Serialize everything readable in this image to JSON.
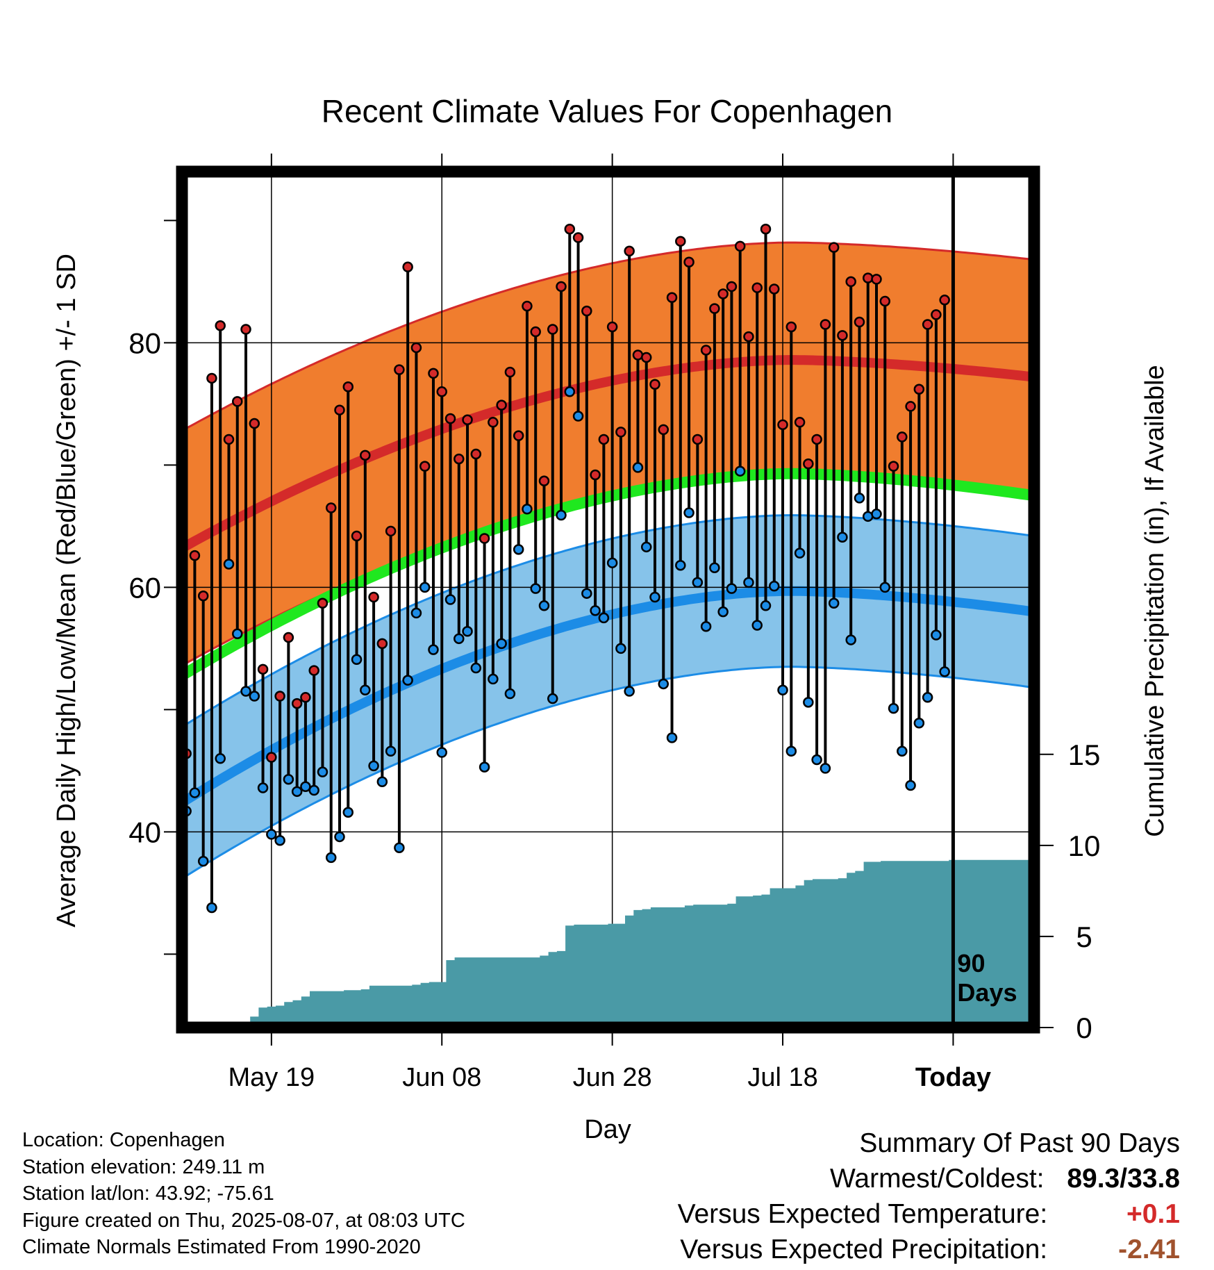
{
  "chart_data": {
    "type": "line",
    "title": "Recent Climate Values For Copenhagen",
    "xlabel": "Day",
    "ylabel_left": "Average Daily High/Low/Mean (Red/Blue/Green) +/- 1 SD",
    "ylabel_right": "Cumulative Precipitation (in), If Available",
    "x_tick_labels": [
      "May 19",
      "Jun 08",
      "Jun 28",
      "Jul 18",
      "Today"
    ],
    "x_tick_days": [
      10,
      30,
      50,
      70,
      90
    ],
    "xlim": [
      -0.5,
      99.5
    ],
    "ylim_left": [
      24,
      94
    ],
    "ylim_right": [
      0,
      47
    ],
    "y_left_ticks": [
      40,
      60,
      80
    ],
    "y_right_ticks": [
      0,
      5,
      10,
      15
    ],
    "period_marker": "90\nDays",
    "normals": {
      "high_mean_start": 63.4,
      "high_mean_peak": 78.6,
      "high_mean_end": 77.2,
      "high_sd": 9.6,
      "low_mean_start": 42.6,
      "low_mean_peak": 59.7,
      "low_mean_end": 58.0,
      "low_sd": 6.2,
      "mean_start": 53.0,
      "mean_peak": 69.3,
      "mean_end": 67.5,
      "peak_day": 71
    },
    "series": [
      {
        "name": "Daily High",
        "color": "#d42a2a",
        "values": [
          46.4,
          62.6,
          59.3,
          77.1,
          81.4,
          72.1,
          75.2,
          81.1,
          73.4,
          53.3,
          46.1,
          51.1,
          55.9,
          50.5,
          51.0,
          53.2,
          58.7,
          66.5,
          74.5,
          76.4,
          64.2,
          70.8,
          59.2,
          55.4,
          64.6,
          77.8,
          86.2,
          79.6,
          69.9,
          77.5,
          76.0,
          73.8,
          70.5,
          73.7,
          70.9,
          64.0,
          73.5,
          74.9,
          77.6,
          72.4,
          83.0,
          80.9,
          68.7,
          81.1,
          84.6,
          89.3,
          88.6,
          82.6,
          69.2,
          72.1,
          81.3,
          72.7,
          87.5,
          79.0,
          78.8,
          76.6,
          72.9,
          83.7,
          88.3,
          86.6,
          72.1,
          79.4,
          82.8,
          84.0,
          84.6,
          87.9,
          80.5,
          84.5,
          89.3,
          84.4,
          73.3,
          81.3,
          73.5,
          70.1,
          72.1,
          81.5,
          87.8,
          80.6,
          85.0,
          81.7,
          85.3,
          85.2,
          83.4,
          69.9,
          72.3,
          74.8,
          76.2,
          81.5,
          82.3,
          83.5
        ]
      },
      {
        "name": "Daily Low",
        "color": "#1c8ce6",
        "values": [
          41.7,
          43.2,
          37.6,
          33.8,
          46.0,
          61.9,
          56.2,
          51.5,
          51.1,
          43.6,
          39.8,
          39.3,
          44.3,
          43.3,
          43.7,
          43.4,
          44.9,
          37.9,
          39.6,
          41.6,
          54.1,
          51.6,
          45.4,
          44.1,
          46.6,
          38.7,
          52.4,
          57.9,
          60.0,
          54.9,
          46.5,
          59.0,
          55.8,
          56.4,
          53.4,
          45.3,
          52.5,
          55.4,
          51.3,
          63.1,
          66.4,
          59.9,
          58.5,
          50.9,
          65.9,
          76.0,
          74.0,
          59.5,
          58.1,
          57.5,
          62.0,
          55.0,
          51.5,
          69.8,
          63.3,
          59.2,
          52.1,
          47.7,
          61.8,
          66.1,
          60.4,
          56.8,
          61.6,
          58.0,
          59.9,
          69.5,
          60.4,
          56.9,
          58.5,
          60.1,
          51.6,
          46.6,
          62.8,
          50.6,
          45.9,
          45.2,
          58.7,
          64.1,
          55.7,
          67.3,
          65.8,
          66.0,
          60.0,
          50.1,
          46.6,
          43.8,
          48.9,
          51.0,
          56.1,
          53.1
        ]
      }
    ],
    "precipitation": {
      "name": "Cumulative Precipitation",
      "color": "#4a9aa6",
      "cumulative_in": [
        0.1,
        0.1,
        0.1,
        0.15,
        0.15,
        0.2,
        0.2,
        0.25,
        0.6,
        1.1,
        1.15,
        1.2,
        1.4,
        1.5,
        1.7,
        2.0,
        2.0,
        2.0,
        2.0,
        2.05,
        2.05,
        2.1,
        2.3,
        2.3,
        2.3,
        2.3,
        2.3,
        2.35,
        2.45,
        2.5,
        2.5,
        3.7,
        3.85,
        3.85,
        3.85,
        3.85,
        3.85,
        3.85,
        3.85,
        3.85,
        3.85,
        3.85,
        3.95,
        4.15,
        4.2,
        5.6,
        5.65,
        5.65,
        5.65,
        5.65,
        5.7,
        5.7,
        6.15,
        6.45,
        6.5,
        6.6,
        6.6,
        6.6,
        6.6,
        6.7,
        6.75,
        6.75,
        6.75,
        6.75,
        6.8,
        7.2,
        7.2,
        7.25,
        7.3,
        7.65,
        7.65,
        7.65,
        7.8,
        8.1,
        8.15,
        8.15,
        8.15,
        8.2,
        8.5,
        8.6,
        9.1,
        9.1,
        9.15,
        9.15,
        9.15,
        9.15,
        9.15,
        9.15,
        9.15,
        9.15,
        9.2,
        9.2,
        9.2,
        9.2,
        9.2,
        9.2,
        9.2,
        9.2,
        9.2,
        9.2
      ]
    }
  },
  "info": {
    "location": "Location: Copenhagen",
    "elevation": "Station elevation: 249.11 m",
    "latlon": "Station lat/lon: 43.92; -75.61",
    "created": "Figure created on Thu, 2025-08-07, at 08:03 UTC",
    "normals": "Climate Normals Estimated From 1990-2020"
  },
  "summary": {
    "heading": "Summary Of Past 90 Days",
    "warm_cold_label": "Warmest/Coldest:",
    "warm_cold_value": "89.3/33.8",
    "temp_label": "Versus Expected Temperature:",
    "temp_value": "+0.1",
    "temp_color": "#d42a2a",
    "precip_label": "Versus Expected Precipitation:",
    "precip_value": "-2.41",
    "precip_color": "#a0522d"
  }
}
